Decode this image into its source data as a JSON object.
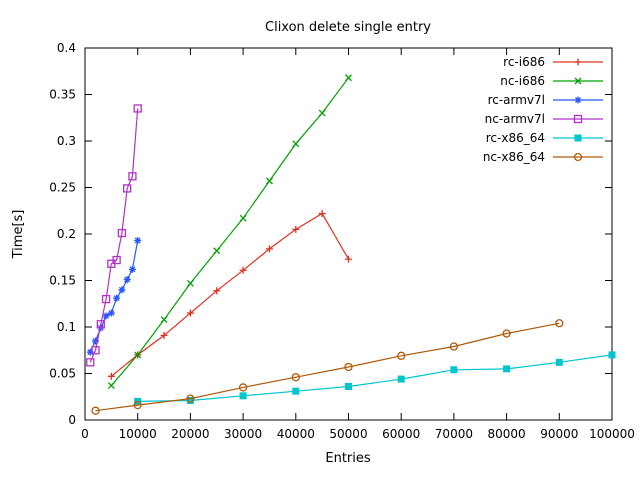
{
  "title": "Clixon delete single entry",
  "chart_data": {
    "type": "line",
    "title": "Clixon delete single entry",
    "xlabel": "Entries",
    "ylabel": "Time[s]",
    "xlim": [
      0,
      100000
    ],
    "ylim": [
      0,
      0.4
    ],
    "grid": false,
    "legend_position": "top-right-inside",
    "xticks": {
      "values": [
        0,
        10000,
        20000,
        30000,
        40000,
        50000,
        60000,
        70000,
        80000,
        90000,
        100000
      ],
      "labels": [
        "0",
        "10000",
        "20000",
        "30000",
        "40000",
        "50000",
        "60000",
        "70000",
        "80000",
        "90000",
        "100000"
      ]
    },
    "yticks": {
      "values": [
        0,
        0.05,
        0.1,
        0.15,
        0.2,
        0.25,
        0.3,
        0.35,
        0.4
      ],
      "labels": [
        "0",
        "0.05",
        "0.1",
        "0.15",
        "0.2",
        "0.25",
        "0.3",
        "0.35",
        "0.4"
      ]
    },
    "series": [
      {
        "name": "rc-i686",
        "color": "#e03020",
        "marker": "plus",
        "x": [
          5000,
          10000,
          15000,
          20000,
          25000,
          30000,
          35000,
          40000,
          45000,
          50000
        ],
        "y": [
          0.047,
          0.07,
          0.091,
          0.115,
          0.139,
          0.161,
          0.184,
          0.205,
          0.222,
          0.173
        ]
      },
      {
        "name": "nc-i686",
        "color": "#00a000",
        "marker": "cross",
        "x": [
          5000,
          10000,
          15000,
          20000,
          25000,
          30000,
          35000,
          40000,
          45000,
          50000
        ],
        "y": [
          0.037,
          0.07,
          0.108,
          0.147,
          0.182,
          0.217,
          0.257,
          0.297,
          0.33,
          0.368
        ]
      },
      {
        "name": "rc-armv7l",
        "color": "#2957ff",
        "marker": "asterisk",
        "x": [
          1000,
          2000,
          3000,
          4000,
          5000,
          6000,
          7000,
          8000,
          9000,
          10000
        ],
        "y": [
          0.073,
          0.085,
          0.099,
          0.112,
          0.115,
          0.131,
          0.14,
          0.151,
          0.162,
          0.193
        ]
      },
      {
        "name": "nc-armv7l",
        "color": "#b132c8",
        "marker": "square-open",
        "x": [
          1000,
          2000,
          3000,
          4000,
          5000,
          6000,
          7000,
          8000,
          9000,
          10000
        ],
        "y": [
          0.062,
          0.075,
          0.103,
          0.13,
          0.168,
          0.172,
          0.201,
          0.249,
          0.262,
          0.335
        ]
      },
      {
        "name": "rc-x86_64",
        "color": "#00c5cd",
        "marker": "square-filled",
        "x": [
          10000,
          20000,
          30000,
          40000,
          50000,
          60000,
          70000,
          80000,
          90000,
          100000
        ],
        "y": [
          0.02,
          0.021,
          0.026,
          0.031,
          0.036,
          0.044,
          0.054,
          0.055,
          0.062,
          0.07
        ]
      },
      {
        "name": "nc-x86_64",
        "color": "#b05a0a",
        "marker": "circle-open",
        "x": [
          2000,
          10000,
          20000,
          30000,
          40000,
          50000,
          60000,
          70000,
          80000,
          90000
        ],
        "y": [
          0.01,
          0.016,
          0.023,
          0.035,
          0.046,
          0.057,
          0.069,
          0.079,
          0.093,
          0.104
        ]
      }
    ]
  }
}
